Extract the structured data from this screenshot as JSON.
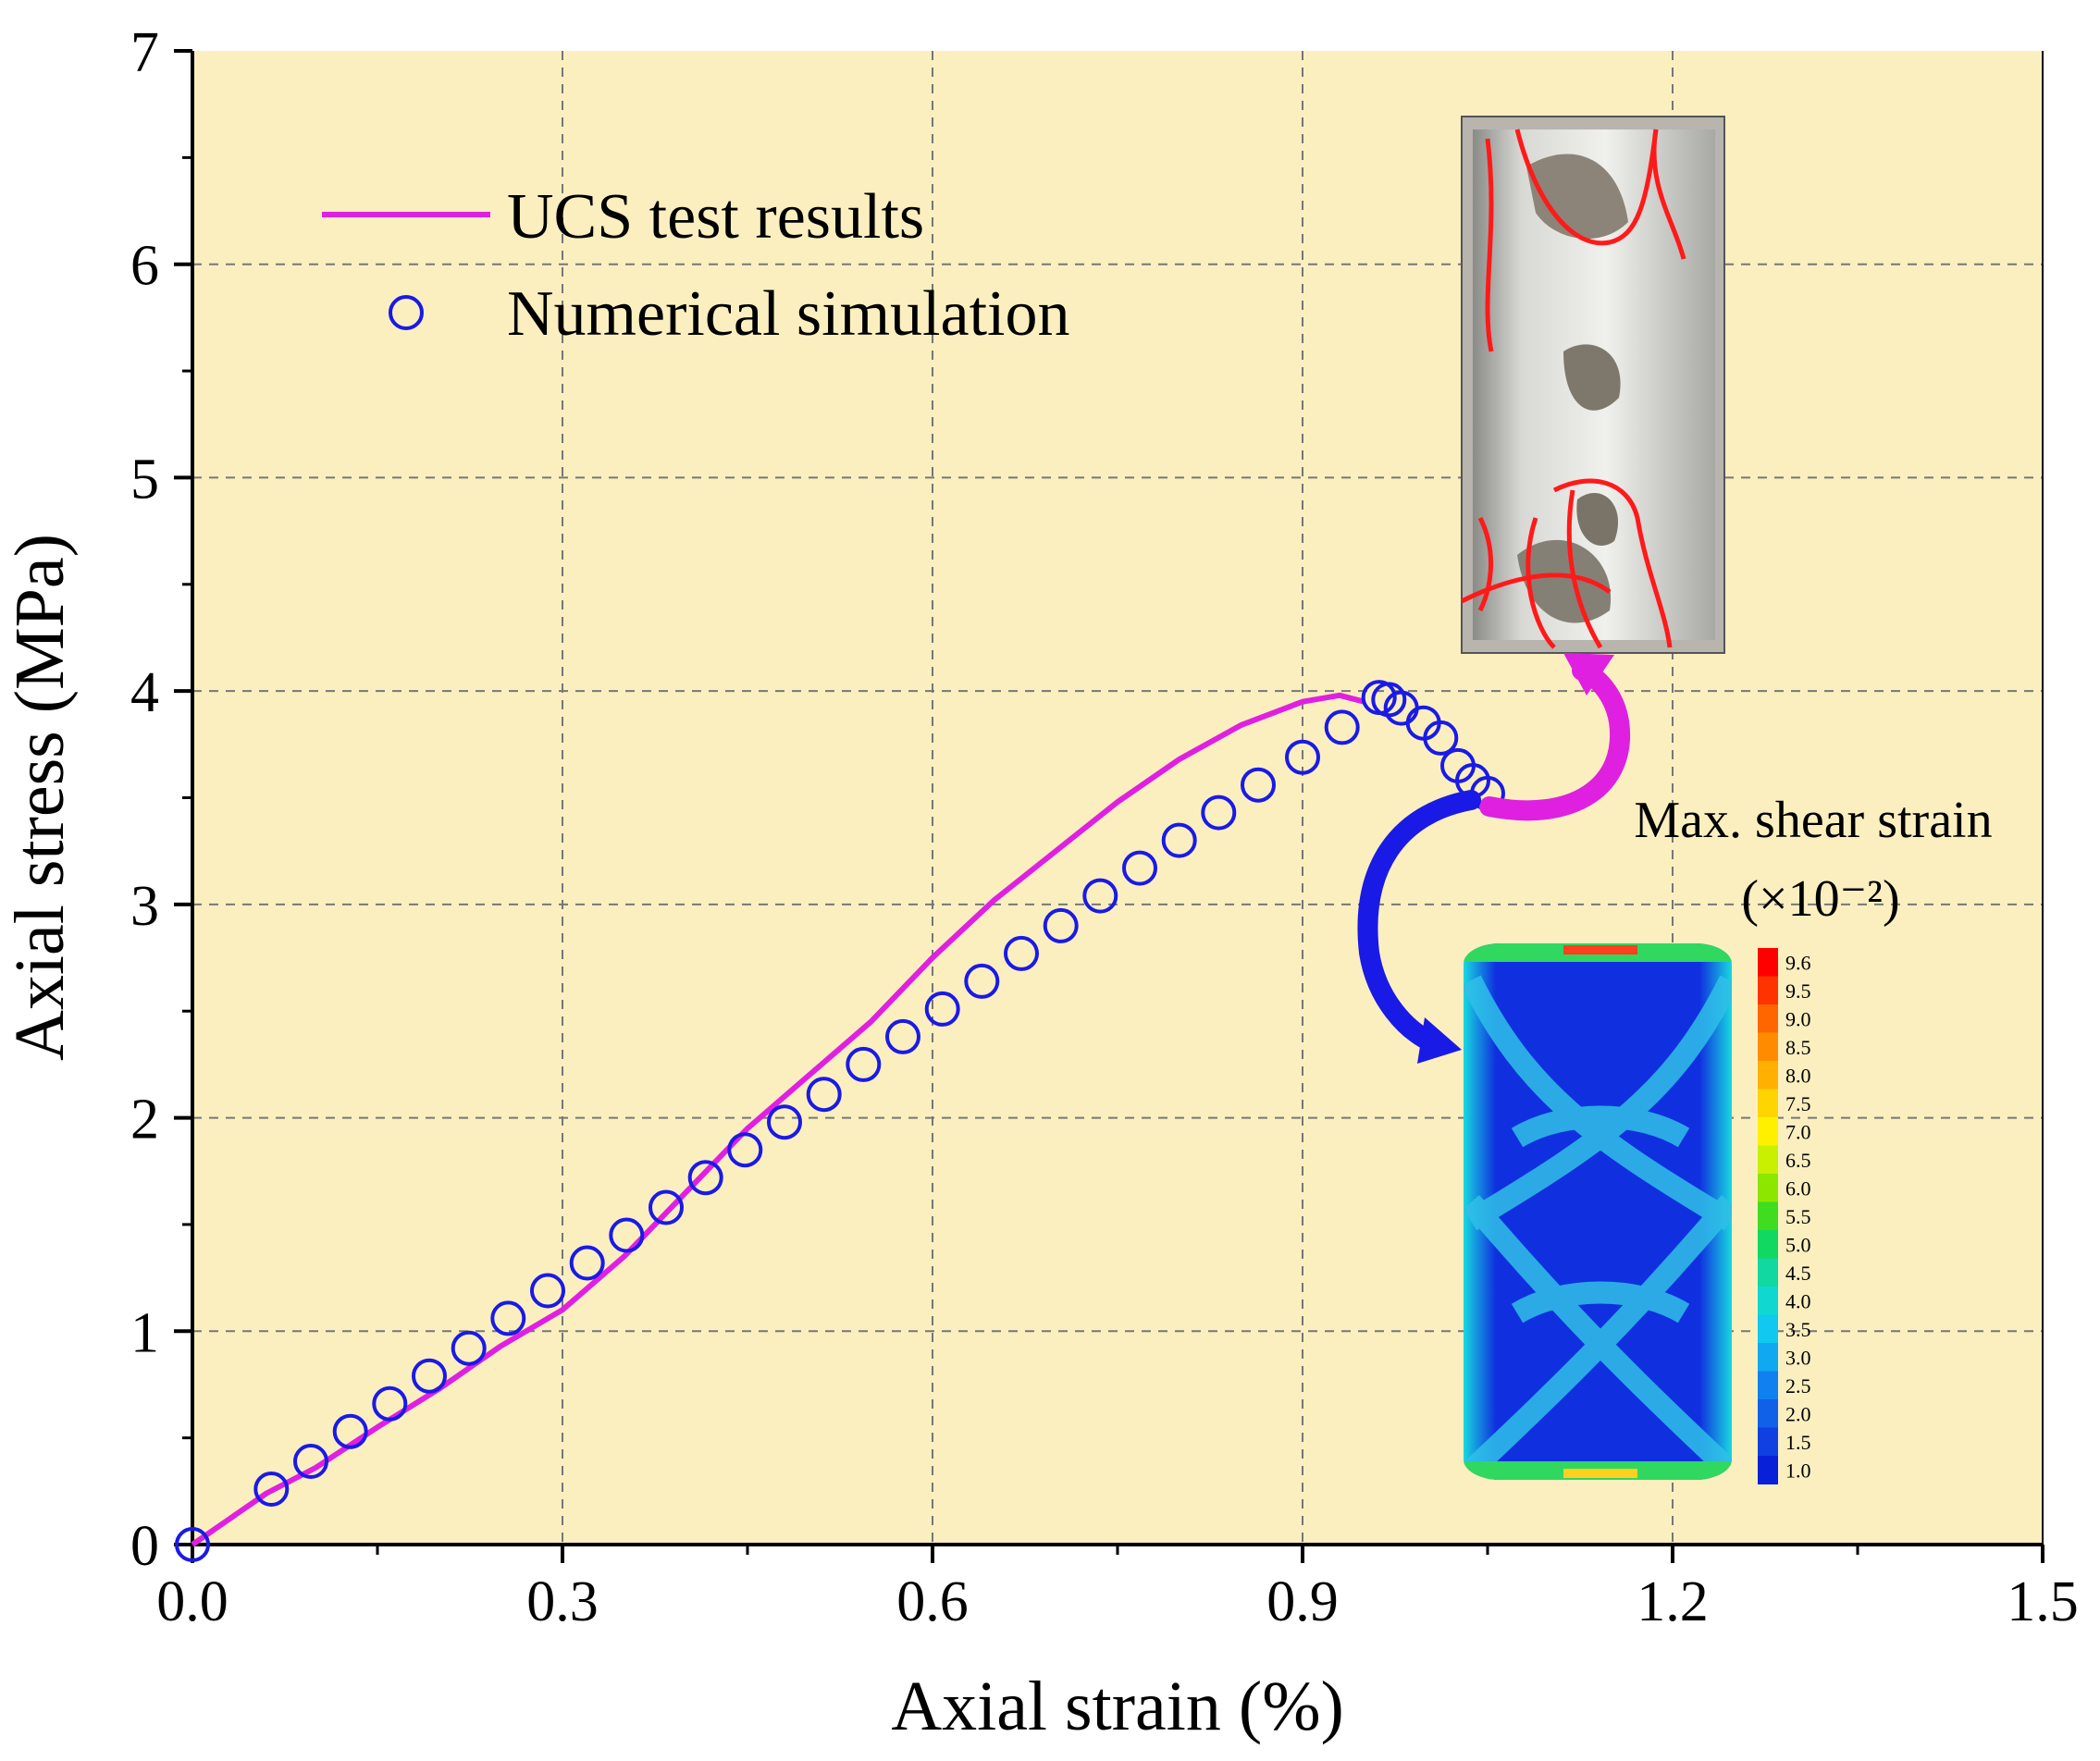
{
  "chart_data": {
    "type": "line",
    "xlabel": "Axial strain (%)",
    "ylabel": "Axial stress (MPa)",
    "xlim": [
      0,
      1.5
    ],
    "ylim": [
      0,
      7
    ],
    "x_tick_labels": [
      "0.0",
      "0.3",
      "0.6",
      "0.9",
      "1.2",
      "1.5"
    ],
    "y_tick_labels": [
      "0",
      "1",
      "2",
      "3",
      "4",
      "5",
      "6",
      "7"
    ],
    "grid": true,
    "legend_position": "top-left",
    "background_color": "#fbefc0",
    "series": [
      {
        "name": "UCS test results",
        "style": "line",
        "color": "#e020e0",
        "x": [
          0,
          0.03,
          0.06,
          0.1,
          0.15,
          0.2,
          0.25,
          0.3,
          0.35,
          0.4,
          0.45,
          0.5,
          0.55,
          0.6,
          0.65,
          0.7,
          0.75,
          0.8,
          0.85,
          0.9,
          0.93,
          0.95
        ],
        "y": [
          0,
          0.12,
          0.24,
          0.36,
          0.55,
          0.73,
          0.93,
          1.1,
          1.35,
          1.65,
          1.95,
          2.2,
          2.45,
          2.75,
          3.02,
          3.25,
          3.48,
          3.68,
          3.84,
          3.95,
          3.98,
          3.95
        ]
      },
      {
        "name": "Numerical simulation",
        "style": "marker",
        "color": "#1a1ae6",
        "x": [
          0,
          0.064,
          0.096,
          0.128,
          0.16,
          0.192,
          0.224,
          0.256,
          0.288,
          0.32,
          0.352,
          0.384,
          0.416,
          0.448,
          0.48,
          0.512,
          0.544,
          0.576,
          0.608,
          0.64,
          0.672,
          0.704,
          0.736,
          0.768,
          0.8,
          0.832,
          0.864,
          0.9,
          0.932,
          0.962,
          0.97,
          0.98,
          0.998,
          1.012,
          1.026,
          1.038,
          1.05
        ],
        "y": [
          0,
          0.26,
          0.39,
          0.53,
          0.66,
          0.79,
          0.92,
          1.06,
          1.19,
          1.32,
          1.45,
          1.58,
          1.72,
          1.85,
          1.98,
          2.11,
          2.25,
          2.38,
          2.51,
          2.64,
          2.77,
          2.9,
          3.04,
          3.17,
          3.3,
          3.43,
          3.56,
          3.69,
          3.83,
          3.97,
          3.96,
          3.92,
          3.85,
          3.78,
          3.65,
          3.58,
          3.52
        ]
      }
    ],
    "colorbar": {
      "title": "Max. shear strain",
      "unit": "(×10⁻²)",
      "labels": [
        "9.6",
        "9.5",
        "9.0",
        "8.5",
        "8.0",
        "7.5",
        "7.0",
        "6.5",
        "6.0",
        "5.5",
        "5.0",
        "4.5",
        "4.0",
        "3.5",
        "3.0",
        "2.5",
        "2.0",
        "1.5",
        "1.0"
      ],
      "colors": [
        "#ff0000",
        "#ff3300",
        "#ff6600",
        "#ff8c00",
        "#ffb000",
        "#ffd500",
        "#fff000",
        "#c8f000",
        "#8ce600",
        "#40dc20",
        "#10d860",
        "#10d8a0",
        "#10d8d0",
        "#10c8f0",
        "#10a8f0",
        "#1080f0",
        "#1060e8",
        "#1040e0",
        "#0820d8"
      ]
    }
  }
}
